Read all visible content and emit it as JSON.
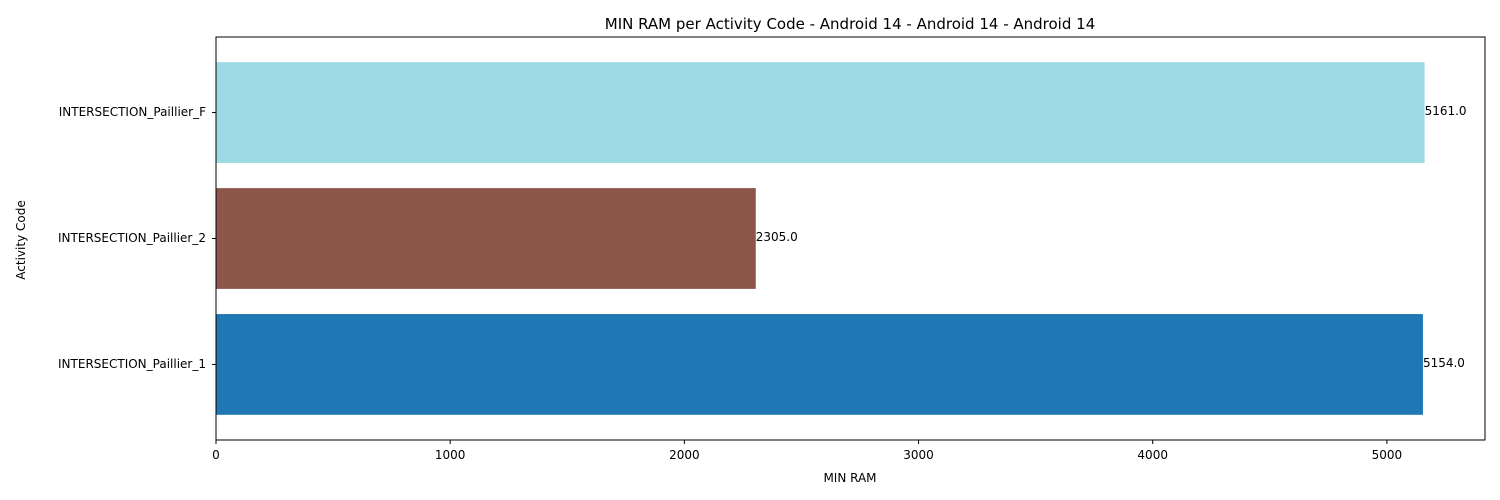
{
  "chart_data": {
    "type": "bar",
    "orientation": "horizontal",
    "title": "MIN RAM per Activity Code - Android 14 - Android 14 - Android 14",
    "xlabel": "MIN RAM",
    "ylabel": "Activity Code",
    "categories": [
      "INTERSECTION_Paillier_1",
      "INTERSECTION_Paillier_2",
      "INTERSECTION_Paillier_F"
    ],
    "values": [
      5154.0,
      2305.0,
      5161.0
    ],
    "data_labels": [
      "5154.0",
      "2305.0",
      "5161.0"
    ],
    "colors": [
      "#1f77b4",
      "#8c564b",
      "#9edae5"
    ],
    "xlim": [
      0,
      5419
    ],
    "xticks": [
      0,
      1000,
      2000,
      3000,
      4000,
      5000
    ],
    "grid": false,
    "legend": "none"
  }
}
